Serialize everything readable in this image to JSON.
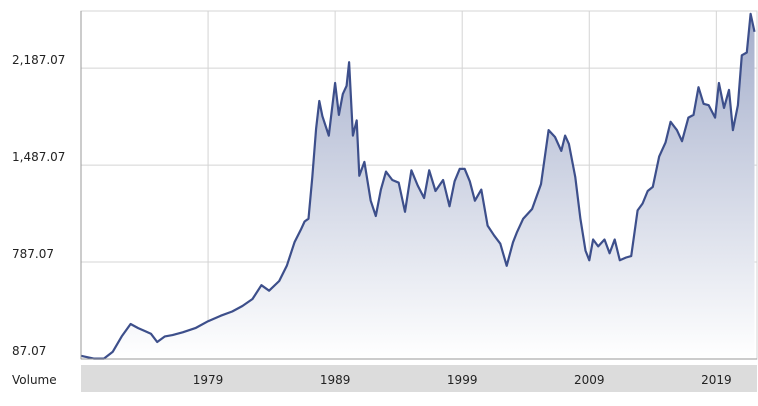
{
  "chart_data": {
    "type": "area",
    "x_unit": "year",
    "xlim": [
      1969.0,
      2022.2
    ],
    "ylim": [
      87.07,
      2600
    ],
    "y_ticks": [
      {
        "value": 87.07,
        "label": "87.07"
      },
      {
        "value": 787.07,
        "label": "787.07"
      },
      {
        "value": 1487.07,
        "label": "1,487.07"
      },
      {
        "value": 2187.07,
        "label": "2,187.07"
      }
    ],
    "x_ticks": [
      {
        "value": 1979,
        "label": "1979"
      },
      {
        "value": 1989,
        "label": "1989"
      },
      {
        "value": 1999,
        "label": "1999"
      },
      {
        "value": 2009,
        "label": "2009"
      },
      {
        "value": 2019,
        "label": "2019"
      }
    ],
    "volume_label": "Volume",
    "grid": true,
    "legend": "none",
    "colors": {
      "line": "#3d4f8b",
      "fill_top": "#a4aecb",
      "fill_bottom": "#ffffff",
      "grid": "#d4d4d4",
      "axis": "#9a9a9a",
      "volume_bar": "#dcdcdc"
    },
    "series": [
      {
        "x": [
          1969.0,
          1970.0,
          1970.8,
          1971.5,
          1972.2,
          1972.9,
          1973.5,
          1974.0,
          1974.5,
          1975.0,
          1975.6,
          1976.2,
          1977.0,
          1978.0,
          1979.0,
          1980.0,
          1980.9,
          1981.7,
          1982.5,
          1983.2,
          1983.8,
          1984.6,
          1985.2,
          1985.8,
          1986.3,
          1986.6,
          1986.9,
          1987.2,
          1987.5,
          1987.75,
          1988.0,
          1988.5,
          1989.0,
          1989.3,
          1989.6,
          1989.9,
          1990.1,
          1990.4,
          1990.7,
          1990.9,
          1991.3,
          1991.8,
          1992.2,
          1992.6,
          1993.0,
          1993.5,
          1994.0,
          1994.5,
          1995.0,
          1995.5,
          1996.0,
          1996.4,
          1996.9,
          1997.5,
          1998.0,
          1998.4,
          1998.8,
          1999.2,
          1999.6,
          2000.0,
          2000.5,
          2001.0,
          2001.5,
          2002.0,
          2002.5,
          2003.0,
          2003.3,
          2003.8,
          2004.5,
          2005.2,
          2005.8,
          2006.3,
          2006.8,
          2007.1,
          2007.4,
          2007.9,
          2008.3,
          2008.7,
          2009.0,
          2009.3,
          2009.7,
          2010.2,
          2010.6,
          2011.0,
          2011.4,
          2011.9,
          2012.3,
          2012.8,
          2013.2,
          2013.6,
          2014.0,
          2014.5,
          2015.0,
          2015.4,
          2015.9,
          2016.3,
          2016.8,
          2017.2,
          2017.6,
          2018.0,
          2018.4,
          2018.9,
          2019.2,
          2019.6,
          2020.0,
          2020.3,
          2020.7,
          2021.0,
          2021.4,
          2021.7,
          2022.0
        ],
        "values": [
          110,
          90,
          90,
          140,
          250,
          340,
          310,
          290,
          270,
          210,
          250,
          260,
          280,
          310,
          360,
          400,
          430,
          470,
          520,
          620,
          580,
          650,
          760,
          930,
          1020,
          1080,
          1100,
          1400,
          1750,
          1950,
          1840,
          1700,
          2080,
          1850,
          2000,
          2060,
          2230,
          1700,
          1810,
          1410,
          1510,
          1230,
          1120,
          1310,
          1440,
          1380,
          1360,
          1150,
          1450,
          1340,
          1250,
          1450,
          1300,
          1380,
          1190,
          1370,
          1460,
          1460,
          1370,
          1230,
          1310,
          1050,
          980,
          920,
          760,
          930,
          1000,
          1100,
          1170,
          1350,
          1740,
          1690,
          1590,
          1700,
          1640,
          1400,
          1100,
          870,
          800,
          950,
          900,
          950,
          850,
          950,
          800,
          820,
          830,
          1160,
          1210,
          1300,
          1330,
          1550,
          1650,
          1800,
          1740,
          1660,
          1830,
          1850,
          2050,
          1930,
          1920,
          1830,
          2080,
          1900,
          2030,
          1740,
          1920,
          2280,
          2300,
          2580,
          2450
        ]
      }
    ]
  }
}
